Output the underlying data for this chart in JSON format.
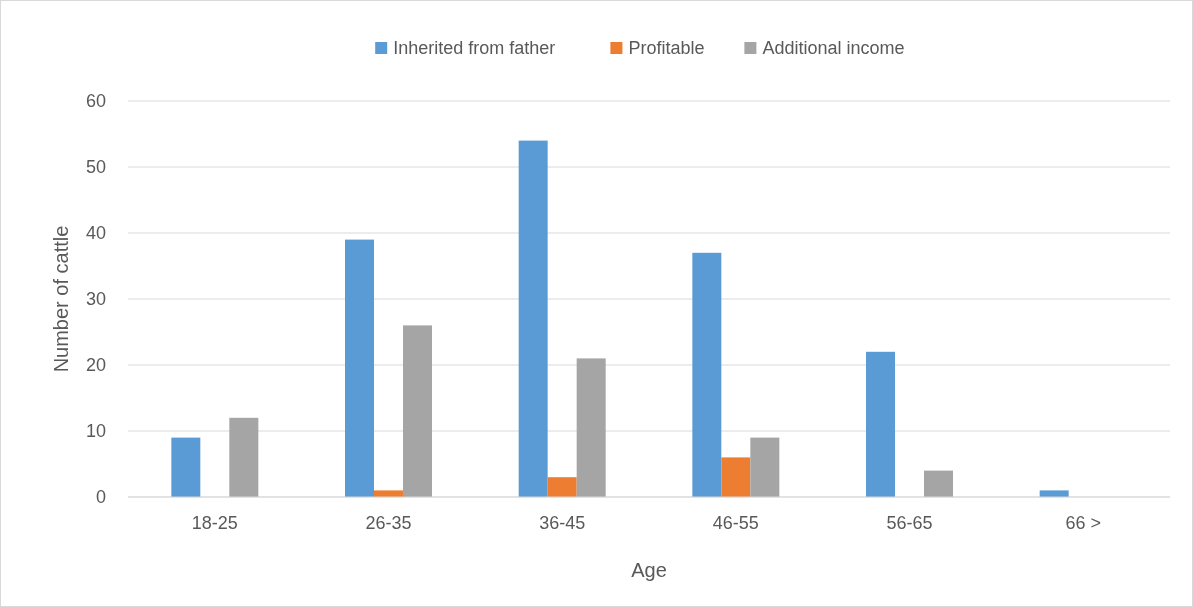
{
  "chart_data": {
    "type": "bar",
    "xlabel": "Age",
    "ylabel": "Number of cattle",
    "categories": [
      "18-25",
      "26-35",
      "36-45",
      "46-55",
      "56-65",
      "66 >"
    ],
    "series": [
      {
        "name": "Inherited from father",
        "color": "#5b9bd5",
        "values": [
          9,
          39,
          54,
          37,
          22,
          1
        ]
      },
      {
        "name": "Profitable",
        "color": "#ed7d31",
        "values": [
          0,
          1,
          3,
          6,
          0,
          0
        ]
      },
      {
        "name": "Additional income",
        "color": "#a5a5a5",
        "values": [
          12,
          26,
          21,
          9,
          4,
          0
        ]
      }
    ],
    "ylim": [
      0,
      60
    ],
    "yticks": [
      0,
      10,
      20,
      30,
      40,
      50,
      60
    ],
    "grid": "y",
    "legend": "top"
  }
}
